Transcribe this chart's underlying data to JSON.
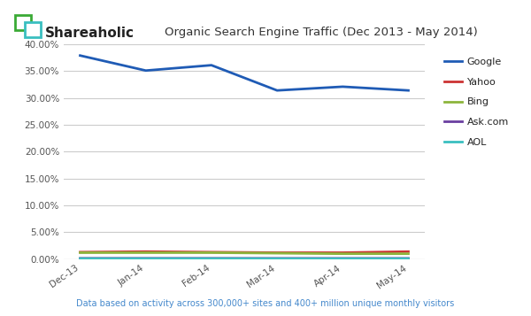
{
  "title": "Organic Search Engine Traffic (Dec 2013 - May 2014)",
  "brand": "Shareaholic",
  "footnote": "Data based on activity across 300,000+ sites and 400+ million unique monthly visitors",
  "categories": [
    "Dec-13",
    "Jan-14",
    "Feb-14",
    "Mar-14",
    "Apr-14",
    "May-14"
  ],
  "series": [
    {
      "name": "Google",
      "color": "#1F5BB5",
      "values": [
        37.9,
        35.1,
        36.1,
        31.4,
        32.1,
        31.4
      ]
    },
    {
      "name": "Yahoo",
      "color": "#CC3333",
      "values": [
        1.3,
        1.4,
        1.3,
        1.2,
        1.2,
        1.4
      ]
    },
    {
      "name": "Bing",
      "color": "#8DB53C",
      "values": [
        1.2,
        1.2,
        1.2,
        1.1,
        1.0,
        1.0
      ]
    },
    {
      "name": "Ask.com",
      "color": "#6A3FA0",
      "values": [
        0.15,
        0.15,
        0.15,
        0.14,
        0.14,
        0.14
      ]
    },
    {
      "name": "AOL",
      "color": "#3ABFC0",
      "values": [
        0.1,
        0.1,
        0.1,
        0.09,
        0.09,
        0.09
      ]
    }
  ],
  "ylim": [
    0,
    40
  ],
  "yticks": [
    0,
    5,
    10,
    15,
    20,
    25,
    30,
    35,
    40
  ],
  "ytick_labels": [
    "0.00%",
    "5.00%",
    "10.00%",
    "15.00%",
    "20.00%",
    "25.00%",
    "30.00%",
    "35.00%",
    "40.00%"
  ],
  "bg_color": "#FFFFFF",
  "grid_color": "#CCCCCC",
  "title_color": "#333333",
  "brand_color": "#222222",
  "tick_label_color": "#555555",
  "footnote_color": "#4488CC",
  "icon_green": "#3AAA35",
  "icon_teal": "#3ABFC0"
}
